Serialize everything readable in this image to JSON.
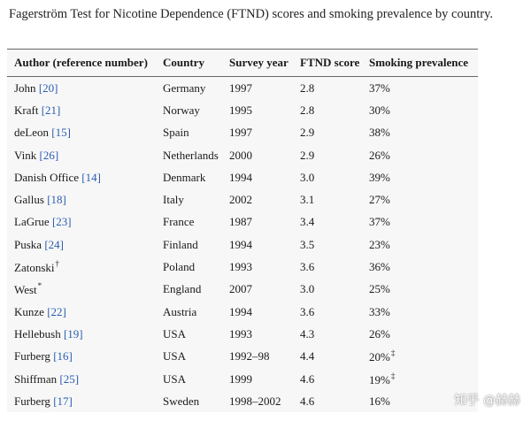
{
  "caption": "Fagerström Test for Nicotine Dependence (FTND) scores and smoking prevalence by country.",
  "headers": [
    "Author (reference number)",
    "Country",
    "Survey year",
    "FTND score",
    "Smoking prevalence"
  ],
  "rows": [
    {
      "author": "John",
      "ref": "[20]",
      "sup": "",
      "country": "Germany",
      "year": "1997",
      "ftnd": "2.8",
      "prev": "37%",
      "prev_sup": ""
    },
    {
      "author": "Kraft",
      "ref": "[21]",
      "sup": "",
      "country": "Norway",
      "year": "1995",
      "ftnd": "2.8",
      "prev": "30%",
      "prev_sup": ""
    },
    {
      "author": "deLeon",
      "ref": "[15]",
      "sup": "",
      "country": "Spain",
      "year": "1997",
      "ftnd": "2.9",
      "prev": "38%",
      "prev_sup": ""
    },
    {
      "author": "Vink",
      "ref": "[26]",
      "sup": "",
      "country": "Netherlands",
      "year": "2000",
      "ftnd": "2.9",
      "prev": "26%",
      "prev_sup": ""
    },
    {
      "author": "Danish Office",
      "ref": "[14]",
      "sup": "",
      "country": "Denmark",
      "year": "1994",
      "ftnd": "3.0",
      "prev": "39%",
      "prev_sup": ""
    },
    {
      "author": "Gallus",
      "ref": "[18]",
      "sup": "",
      "country": "Italy",
      "year": "2002",
      "ftnd": "3.1",
      "prev": "27%",
      "prev_sup": ""
    },
    {
      "author": "LaGrue",
      "ref": "[23]",
      "sup": "",
      "country": "France",
      "year": "1987",
      "ftnd": "3.4",
      "prev": "37%",
      "prev_sup": ""
    },
    {
      "author": "Puska",
      "ref": "[24]",
      "sup": "",
      "country": "Finland",
      "year": "1994",
      "ftnd": "3.5",
      "prev": "23%",
      "prev_sup": ""
    },
    {
      "author": "Zatonski",
      "ref": "",
      "sup": "†",
      "country": "Poland",
      "year": "1993",
      "ftnd": "3.6",
      "prev": "36%",
      "prev_sup": ""
    },
    {
      "author": "West",
      "ref": "",
      "sup": "*",
      "country": "England",
      "year": "2007",
      "ftnd": "3.0",
      "prev": "25%",
      "prev_sup": ""
    },
    {
      "author": "Kunze",
      "ref": "[22]",
      "sup": "",
      "country": "Austria",
      "year": "1994",
      "ftnd": "3.6",
      "prev": "33%",
      "prev_sup": ""
    },
    {
      "author": "Hellebush",
      "ref": "[19]",
      "sup": "",
      "country": "USA",
      "year": "1993",
      "ftnd": "4.3",
      "prev": "26%",
      "prev_sup": ""
    },
    {
      "author": "Furberg",
      "ref": "[16]",
      "sup": "",
      "country": "USA",
      "year": "1992–98",
      "ftnd": "4.4",
      "prev": "20%",
      "prev_sup": "‡"
    },
    {
      "author": "Shiffman",
      "ref": "[25]",
      "sup": "",
      "country": "USA",
      "year": "1999",
      "ftnd": "4.6",
      "prev": "19%",
      "prev_sup": "‡"
    },
    {
      "author": "Furberg",
      "ref": "[17]",
      "sup": "",
      "country": "Sweden",
      "year": "1998–2002",
      "ftnd": "4.6",
      "prev": "16%",
      "prev_sup": ""
    }
  ],
  "watermark": "知乎 @赫赫"
}
